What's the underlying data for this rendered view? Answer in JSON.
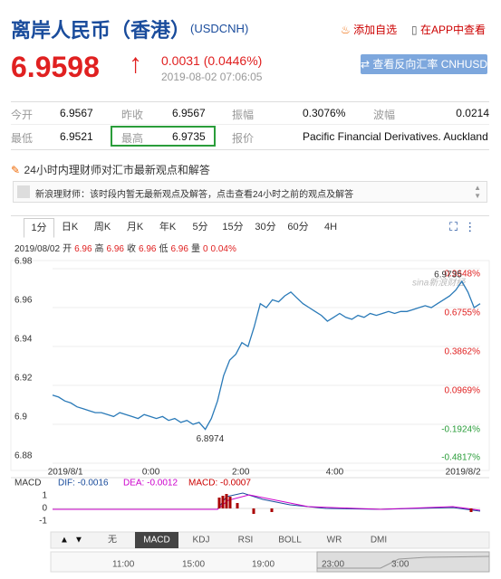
{
  "header": {
    "title": "离岸人民币（香港）",
    "code": "(USDCNH)",
    "add": "添加自选",
    "app": "在APP中查看"
  },
  "quote": {
    "price": "6.9598",
    "change": "0.0031 (0.0446%)",
    "time": "2019-08-02 07:06:05",
    "button": "查看反向汇率 CNHUSD"
  },
  "stats": {
    "rows": [
      [
        "今开",
        "6.9567",
        "昨收",
        "6.9567",
        "振幅",
        "0.3076%",
        "波幅",
        "0.0214"
      ],
      [
        "最低",
        "6.9521",
        "最高",
        "6.9735",
        "报价",
        "Pacific Financial Derivatives. Auckland"
      ]
    ]
  },
  "notice": {
    "title": "24小时内理财师对汇市最新观点和解答",
    "text": "新浪理财师：该时段内暂无最新观点及解答，点击查看24小时之前的观点及解答"
  },
  "tabs": [
    "1分",
    "日K",
    "周K",
    "月K",
    "年K",
    "5分",
    "15分",
    "30分",
    "60分",
    "4H"
  ],
  "info": {
    "date": "2019/08/02",
    "items": [
      [
        "开",
        "6.96"
      ],
      [
        "高",
        "6.96"
      ],
      [
        "收",
        "6.96"
      ],
      [
        "低",
        "6.96"
      ],
      [
        "量",
        "0"
      ]
    ],
    "pct": "0.04%"
  },
  "chart_data": {
    "type": "line",
    "color": "#2a7ab8",
    "values": [
      6.915,
      6.914,
      6.912,
      6.911,
      6.909,
      6.908,
      6.907,
      6.906,
      6.906,
      6.905,
      6.904,
      6.906,
      6.905,
      6.904,
      6.903,
      6.905,
      6.904,
      6.903,
      6.904,
      6.902,
      6.903,
      6.901,
      6.902,
      6.9,
      6.901,
      6.8974,
      6.903,
      6.912,
      6.925,
      6.933,
      6.936,
      6.942,
      6.94,
      6.95,
      6.962,
      6.96,
      6.964,
      6.963,
      6.966,
      6.968,
      6.965,
      6.962,
      6.96,
      6.958,
      6.956,
      6.953,
      6.955,
      6.957,
      6.955,
      6.954,
      6.956,
      6.955,
      6.957,
      6.956,
      6.957,
      6.958,
      6.957,
      6.958,
      6.958,
      6.959,
      6.96,
      6.961,
      6.96,
      6.962,
      6.964,
      6.966,
      6.969,
      6.9735,
      6.968,
      6.96,
      6.962
    ],
    "ylim": [
      6.88,
      6.98
    ],
    "yticks": [
      6.88,
      6.9,
      6.92,
      6.94,
      6.96,
      6.98
    ],
    "y2lim": [
      -0.4817,
      0.9648
    ],
    "y2ticks": [
      {
        "value": -0.4817,
        "label": "-0.4817%"
      },
      {
        "value": -0.1924,
        "label": "-0.1924%"
      },
      {
        "value": 0.0969,
        "label": "0.0969%"
      },
      {
        "value": 0.3862,
        "label": "0.3862%"
      },
      {
        "value": 0.6755,
        "label": "0.6755%"
      },
      {
        "value": 0.9648,
        "label": "0.9648%"
      }
    ],
    "xticks": [
      "2019/8/1",
      "0:00",
      "2:00",
      "4:00",
      "2019/8/2"
    ],
    "high_label": "6.9735",
    "low_label": "6.8974",
    "watermark": "sina新浪财经"
  },
  "macd": {
    "label": "MACD",
    "dif": "DIF: -0.0016",
    "dea": "DEA: -0.0012",
    "macd": "MACD: -0.0007",
    "yticks": [
      "1",
      "0",
      "-1"
    ]
  },
  "indicator_tabs": [
    "无",
    "MACD",
    "KDJ",
    "RSI",
    "BOLL",
    "WR",
    "DMI"
  ],
  "timeline": [
    "11:00",
    "15:00",
    "19:00",
    "23:00",
    "3:00"
  ]
}
